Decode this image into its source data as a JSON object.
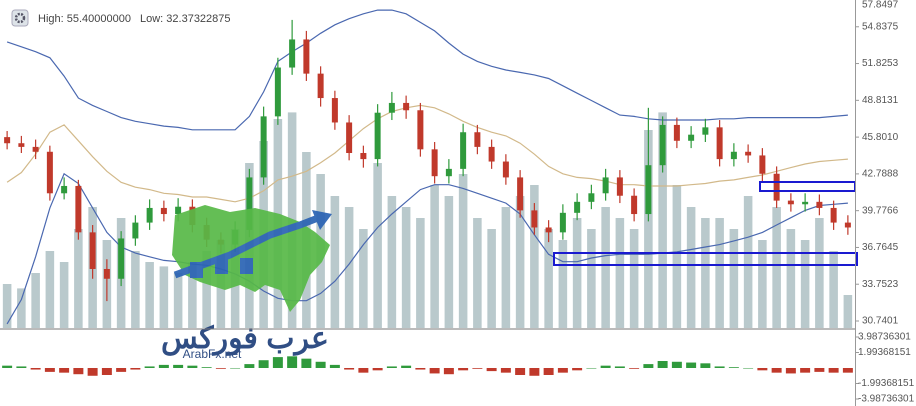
{
  "header": {
    "high": "High: 55.40000000",
    "low": "Low: 32.37322875"
  },
  "logo": {
    "arabic": "عرب فوركس",
    "site": "ArabFx.net"
  },
  "chart_data": {
    "type": "candlestick",
    "up_color": "#2f9a3c",
    "down_color": "#c0392b",
    "volume_color": "#b9c9cc",
    "ylim": [
      30.7401,
      57.8497
    ],
    "yticks": [
      57.8497,
      54.8375,
      51.8253,
      48.8131,
      {
        "value": 45.801,
        "label": "45.8010"
      },
      42.7888,
      39.7766,
      36.7645,
      33.7523,
      30.7401
    ],
    "y2lim": [
      -4.63,
      4.5
    ],
    "y2ticks": [
      3.98736301,
      1.99368151,
      -1.99368151,
      -3.98736301
    ],
    "open": [
      45.8,
      45.3,
      45.0,
      44.6,
      41.2,
      41.8,
      38.0,
      35.0,
      34.2,
      37.5,
      38.8,
      40.0,
      39.5,
      40.1,
      38.6,
      37.4,
      37.0,
      38.2,
      42.5,
      47.5,
      51.5,
      53.8,
      51.0,
      49.0,
      47.0,
      44.5,
      44.0,
      47.8,
      48.6,
      48.0,
      44.8,
      42.6,
      43.2,
      46.2,
      45.0,
      43.8,
      42.5,
      39.8,
      38.4,
      38.0,
      39.6,
      40.5,
      41.2,
      42.5,
      41.0,
      39.5,
      43.5,
      46.8,
      45.5,
      46.0,
      46.6,
      44.0,
      44.6,
      44.3,
      42.8,
      40.6,
      40.3,
      40.5,
      40.0,
      38.8
    ],
    "high": [
      46.3,
      45.9,
      45.6,
      45.1,
      42.5,
      42.3,
      38.6,
      35.8,
      38.1,
      39.4,
      40.7,
      40.6,
      40.8,
      40.7,
      39.2,
      38.0,
      38.9,
      43.2,
      48.3,
      52.3,
      55.4,
      54.5,
      51.6,
      49.6,
      47.6,
      45.1,
      48.5,
      49.5,
      49.2,
      48.6,
      45.4,
      44.0,
      46.9,
      46.8,
      45.6,
      44.4,
      43.1,
      40.4,
      39.0,
      40.3,
      41.2,
      41.9,
      43.2,
      43.1,
      41.6,
      48.2,
      47.5,
      47.4,
      46.7,
      47.3,
      47.2,
      45.3,
      45.2,
      44.9,
      43.4,
      41.2,
      41.2,
      41.1,
      40.6,
      39.4
    ],
    "low": [
      44.8,
      44.5,
      44.0,
      40.6,
      40.7,
      37.4,
      34.2,
      32.37,
      33.6,
      36.9,
      38.2,
      38.9,
      38.9,
      38.0,
      36.8,
      36.3,
      36.4,
      37.6,
      41.9,
      46.8,
      50.9,
      50.4,
      48.3,
      46.4,
      43.9,
      43.3,
      43.4,
      47.2,
      47.3,
      44.2,
      42.0,
      42.0,
      42.6,
      44.4,
      43.2,
      41.9,
      39.2,
      37.8,
      37.2,
      37.4,
      39.0,
      39.9,
      40.6,
      40.4,
      38.9,
      38.9,
      42.9,
      44.9,
      44.9,
      45.4,
      43.4,
      43.4,
      43.7,
      42.2,
      40.0,
      39.7,
      39.7,
      39.4,
      38.2,
      37.8
    ],
    "close": [
      45.3,
      45.0,
      44.6,
      41.2,
      41.8,
      38.0,
      35.0,
      34.2,
      37.5,
      38.8,
      40.0,
      39.5,
      40.1,
      38.6,
      37.4,
      37.0,
      38.2,
      42.5,
      47.5,
      51.5,
      53.8,
      51.0,
      49.0,
      47.0,
      44.5,
      44.0,
      47.8,
      48.6,
      48.0,
      44.8,
      42.6,
      43.2,
      46.2,
      45.0,
      43.8,
      42.5,
      39.8,
      38.4,
      38.0,
      39.6,
      40.5,
      41.2,
      42.5,
      41.0,
      39.5,
      43.5,
      46.8,
      45.5,
      46.0,
      46.6,
      44.0,
      44.6,
      44.3,
      42.8,
      40.6,
      40.3,
      40.5,
      40.0,
      38.8,
      38.4
    ],
    "volume": [
      20,
      18,
      25,
      35,
      30,
      45,
      55,
      40,
      50,
      35,
      30,
      28,
      25,
      30,
      35,
      40,
      45,
      75,
      85,
      95,
      98,
      80,
      70,
      60,
      55,
      45,
      75,
      60,
      55,
      50,
      65,
      60,
      70,
      50,
      45,
      55,
      60,
      65,
      45,
      40,
      50,
      45,
      55,
      50,
      45,
      90,
      98,
      65,
      55,
      50,
      50,
      45,
      60,
      40,
      55,
      45,
      40,
      50,
      35,
      15
    ],
    "bands": [
      {
        "color": "#4a68b0",
        "values": [
          53.6,
          53.2,
          52.8,
          52.3,
          50.8,
          49.0,
          48.4,
          47.9,
          47.4,
          47.1,
          46.9,
          46.7,
          46.6,
          46.4,
          46.4,
          46.4,
          46.4,
          47.5,
          49.5,
          52.0,
          52.8,
          53.5,
          54.3,
          55.0,
          55.5,
          55.9,
          56.2,
          56.2,
          55.9,
          55.2,
          54.5,
          53.5,
          52.6,
          52.0,
          51.6,
          51.3,
          51.1,
          50.9,
          50.6,
          50.0,
          49.4,
          48.8,
          48.2,
          47.6,
          47.5,
          47.3,
          47.2,
          47.2,
          47.2,
          47.2,
          47.3,
          47.3,
          47.4,
          47.4,
          47.4,
          47.4,
          47.4,
          47.4,
          47.5,
          47.6
        ]
      },
      {
        "color": "#d2b98a",
        "values": [
          42.1,
          42.9,
          44.4,
          46.2,
          46.8,
          45.5,
          44.2,
          43.0,
          42.1,
          41.7,
          41.5,
          41.2,
          41.1,
          40.9,
          40.9,
          40.7,
          40.5,
          40.8,
          41.4,
          42.3,
          42.6,
          43.0,
          43.7,
          44.5,
          45.5,
          46.5,
          47.3,
          47.9,
          48.2,
          48.4,
          48.2,
          47.7,
          47.1,
          46.6,
          46.2,
          45.9,
          45.3,
          44.4,
          43.4,
          42.8,
          42.5,
          42.4,
          42.2,
          41.9,
          41.9,
          41.8,
          41.8,
          41.8,
          41.9,
          42.0,
          42.2,
          42.3,
          42.5,
          42.7,
          43.0,
          43.3,
          43.6,
          43.8,
          43.9,
          44.0
        ]
      },
      {
        "color": "#4a68b0",
        "values": [
          30.5,
          32.5,
          36.0,
          40.0,
          42.8,
          42.0,
          40.0,
          38.0,
          36.8,
          36.3,
          36.0,
          35.7,
          35.6,
          35.4,
          35.3,
          35.0,
          34.6,
          34.0,
          33.2,
          32.6,
          32.4,
          32.4,
          33.0,
          34.0,
          35.4,
          37.0,
          38.4,
          39.5,
          40.5,
          41.5,
          41.9,
          41.9,
          41.6,
          41.2,
          40.8,
          40.4,
          39.5,
          37.8,
          36.2,
          35.6,
          35.6,
          35.9,
          36.1,
          36.2,
          36.2,
          36.2,
          36.3,
          36.4,
          36.6,
          36.8,
          37.0,
          37.3,
          37.6,
          38.0,
          38.6,
          39.2,
          39.8,
          40.2,
          40.3,
          40.4
        ]
      }
    ],
    "macd_histogram": [
      0.3,
      0.2,
      -0.2,
      -0.5,
      -0.6,
      -0.8,
      -1.0,
      -0.9,
      -0.5,
      -0.2,
      0.2,
      0.4,
      0.4,
      0.3,
      0.1,
      -0.1,
      0.0,
      0.5,
      1.0,
      1.4,
      1.5,
      1.2,
      0.8,
      0.4,
      -0.2,
      -0.6,
      -0.3,
      0.2,
      0.3,
      -0.2,
      -0.7,
      -0.8,
      -0.3,
      -0.1,
      -0.4,
      -0.6,
      -0.9,
      -1.0,
      -0.9,
      -0.6,
      -0.3,
      0.0,
      0.3,
      0.2,
      -0.1,
      0.5,
      0.9,
      0.8,
      0.7,
      0.6,
      0.2,
      0.1,
      0.0,
      -0.3,
      -0.6,
      -0.7,
      -0.6,
      -0.5,
      -0.6,
      -0.6
    ]
  }
}
